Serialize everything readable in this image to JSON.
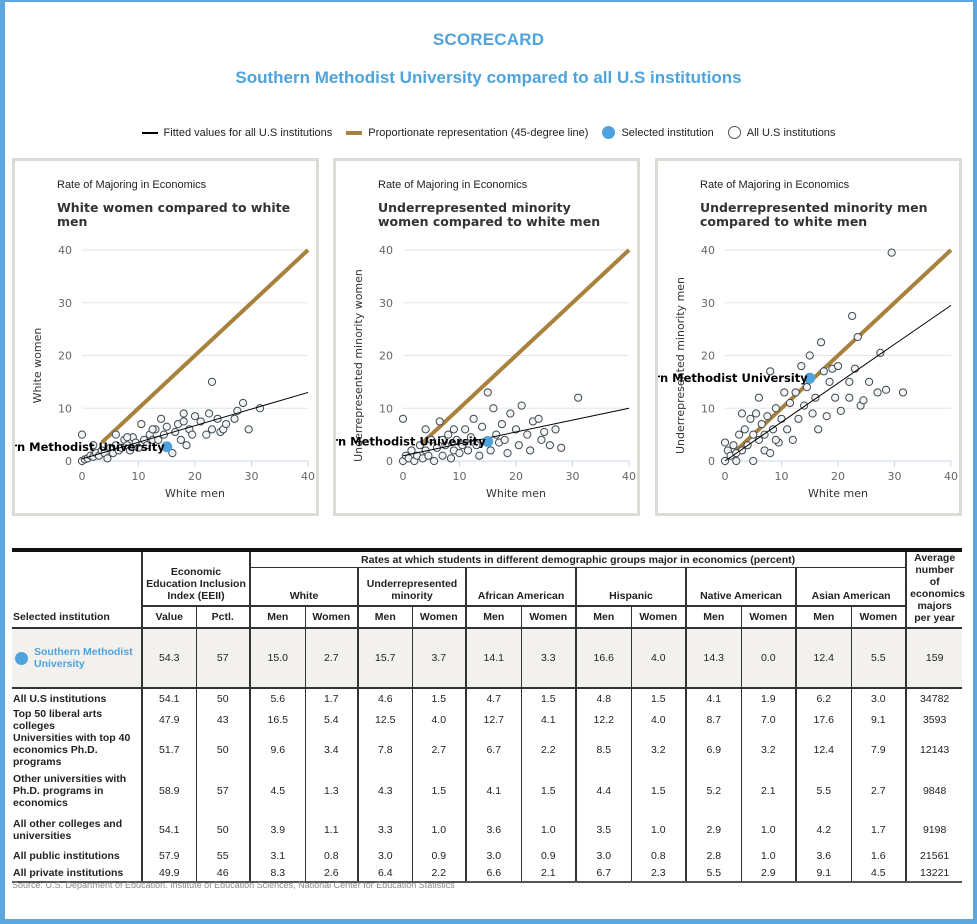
{
  "header": {
    "title": "SCORECARD",
    "subtitle": "Southern Methodist University compared to all U.S institutions"
  },
  "legend": [
    {
      "label": "Fitted values for all U.S institutions",
      "type": "line",
      "color": "#000000"
    },
    {
      "label": "Proportionate representation (45-degree line)",
      "type": "line",
      "color": "#a8813c"
    },
    {
      "label": "Selected institution",
      "type": "dot",
      "color": "#4ea3dc"
    },
    {
      "label": "All U.S institutions",
      "type": "open-circle",
      "color": "#555555"
    }
  ],
  "colors": {
    "accent": "#4ea3dc",
    "proportionate": "#a8813c",
    "fitted": "#000000",
    "frame": "#5ba7de"
  },
  "chart_data": [
    {
      "type": "scatter",
      "pretitle": "Rate of Majoring in Economics",
      "title": "White women compared to white men",
      "xlabel": "White men",
      "ylabel": "White women",
      "xlim": [
        0,
        40
      ],
      "ylim": [
        0,
        40
      ],
      "xticks": [
        0,
        10,
        20,
        30,
        40
      ],
      "yticks": [
        0,
        10,
        20,
        30,
        40
      ],
      "grid": true,
      "fitted": [
        [
          0,
          0.4
        ],
        [
          40,
          13
        ]
      ],
      "proportionate": [
        [
          3.5,
          3.5
        ],
        [
          40,
          40
        ]
      ],
      "selected": {
        "name": "Southern Methodist University",
        "x": 15.0,
        "y": 2.7
      },
      "points": [
        [
          0,
          0
        ],
        [
          0.5,
          0.3
        ],
        [
          1,
          0.5
        ],
        [
          1.5,
          1
        ],
        [
          2,
          0.8
        ],
        [
          2.5,
          1.5
        ],
        [
          3,
          1
        ],
        [
          3.5,
          2
        ],
        [
          4,
          1.5
        ],
        [
          4.5,
          0.5
        ],
        [
          5,
          2.5
        ],
        [
          5.5,
          1.5
        ],
        [
          6,
          3
        ],
        [
          6.5,
          2
        ],
        [
          7,
          2.5
        ],
        [
          7.5,
          4
        ],
        [
          8,
          3
        ],
        [
          8.5,
          2
        ],
        [
          9,
          4.5
        ],
        [
          9.5,
          3.5
        ],
        [
          10,
          2.5
        ],
        [
          10.5,
          7
        ],
        [
          11,
          4
        ],
        [
          11.5,
          3
        ],
        [
          12,
          5
        ],
        [
          12.5,
          4
        ],
        [
          13,
          6
        ],
        [
          13.5,
          4
        ],
        [
          14,
          8
        ],
        [
          14.5,
          5
        ],
        [
          15,
          6.5
        ],
        [
          16,
          1.5
        ],
        [
          16.5,
          5.5
        ],
        [
          17,
          7
        ],
        [
          17.5,
          4
        ],
        [
          18,
          9
        ],
        [
          18.5,
          3
        ],
        [
          19,
          6
        ],
        [
          19.5,
          5
        ],
        [
          20,
          8.5
        ],
        [
          21,
          7.5
        ],
        [
          22,
          5
        ],
        [
          22.5,
          9
        ],
        [
          23,
          15
        ],
        [
          23,
          6
        ],
        [
          24,
          8
        ],
        [
          24.5,
          5.5
        ],
        [
          25,
          6
        ],
        [
          25.5,
          7
        ],
        [
          27,
          8
        ],
        [
          27.5,
          9.5
        ],
        [
          28.5,
          11
        ],
        [
          29.5,
          6
        ],
        [
          31.5,
          10
        ],
        [
          0,
          5
        ],
        [
          2,
          3
        ],
        [
          6,
          5
        ],
        [
          8,
          4.5
        ],
        [
          12.5,
          6
        ],
        [
          18,
          7.5
        ]
      ]
    },
    {
      "type": "scatter",
      "pretitle": "Rate of Majoring in Economics",
      "title": "Underrepresented minority women compared to white men",
      "xlabel": "White men",
      "ylabel": "Underrepresented minority women",
      "xlim": [
        0,
        40
      ],
      "ylim": [
        0,
        40
      ],
      "xticks": [
        0,
        10,
        20,
        30,
        40
      ],
      "yticks": [
        0,
        10,
        20,
        30,
        40
      ],
      "grid": true,
      "fitted": [
        [
          0,
          1
        ],
        [
          40,
          10
        ]
      ],
      "proportionate": [
        [
          3.5,
          3.5
        ],
        [
          40,
          40
        ]
      ],
      "selected": {
        "name": "Southern Methodist University",
        "x": 15.0,
        "y": 3.7
      },
      "points": [
        [
          0,
          0
        ],
        [
          0,
          8
        ],
        [
          0.5,
          1
        ],
        [
          1,
          0.5
        ],
        [
          1.5,
          2
        ],
        [
          2,
          0
        ],
        [
          2.5,
          1
        ],
        [
          3,
          3
        ],
        [
          3.5,
          0.5
        ],
        [
          4,
          2
        ],
        [
          4.5,
          1
        ],
        [
          5,
          4
        ],
        [
          5.5,
          0
        ],
        [
          6,
          2.5
        ],
        [
          6.5,
          7.5
        ],
        [
          7,
          1
        ],
        [
          7.5,
          3
        ],
        [
          8,
          5
        ],
        [
          8.5,
          0.5
        ],
        [
          9,
          2
        ],
        [
          9.5,
          4
        ],
        [
          10,
          1.5
        ],
        [
          10.5,
          3
        ],
        [
          11,
          6
        ],
        [
          11.5,
          2
        ],
        [
          12,
          4.5
        ],
        [
          12.5,
          8
        ],
        [
          13,
          3
        ],
        [
          13.5,
          1
        ],
        [
          14,
          6.5
        ],
        [
          15,
          13
        ],
        [
          15.5,
          2
        ],
        [
          16,
          10
        ],
        [
          16.5,
          5
        ],
        [
          17,
          3.5
        ],
        [
          17.5,
          7
        ],
        [
          18,
          4
        ],
        [
          18.5,
          1.5
        ],
        [
          19,
          9
        ],
        [
          20,
          6
        ],
        [
          20.5,
          3
        ],
        [
          21,
          10.5
        ],
        [
          22,
          5
        ],
        [
          22.5,
          2
        ],
        [
          23,
          7.5
        ],
        [
          24,
          8
        ],
        [
          24.5,
          4
        ],
        [
          25,
          5.5
        ],
        [
          26,
          3
        ],
        [
          27,
          6
        ],
        [
          28,
          2.5
        ],
        [
          31,
          12
        ],
        [
          7,
          4
        ],
        [
          4,
          6
        ],
        [
          9,
          6
        ]
      ]
    },
    {
      "type": "scatter",
      "pretitle": "Rate of Majoring in Economics",
      "title": "Underrepresented minority men compared to white men",
      "xlabel": "White men",
      "ylabel": "Underrepresented minority men",
      "xlim": [
        0,
        40
      ],
      "ylim": [
        0,
        40
      ],
      "xticks": [
        0,
        10,
        20,
        30,
        40
      ],
      "yticks": [
        0,
        10,
        20,
        30,
        40
      ],
      "grid": true,
      "fitted": [
        [
          0,
          0
        ],
        [
          40,
          29.5
        ]
      ],
      "proportionate": [
        [
          0,
          0
        ],
        [
          40,
          40
        ]
      ],
      "selected": {
        "name": "Southern Methodist University",
        "x": 15.0,
        "y": 15.7
      },
      "points": [
        [
          0,
          0
        ],
        [
          0,
          3.5
        ],
        [
          0.5,
          2
        ],
        [
          1,
          1
        ],
        [
          1.5,
          3
        ],
        [
          2,
          0
        ],
        [
          2.5,
          5
        ],
        [
          3,
          2
        ],
        [
          3.5,
          6
        ],
        [
          4,
          3
        ],
        [
          4.5,
          8
        ],
        [
          5,
          0
        ],
        [
          5,
          5
        ],
        [
          5.5,
          9
        ],
        [
          6,
          4
        ],
        [
          6,
          12
        ],
        [
          6.5,
          7
        ],
        [
          7,
          2
        ],
        [
          7.5,
          8.5
        ],
        [
          8,
          1.5
        ],
        [
          8,
          17
        ],
        [
          8.5,
          6
        ],
        [
          9,
          10
        ],
        [
          9.5,
          3.5
        ],
        [
          10,
          8
        ],
        [
          10.5,
          13
        ],
        [
          11,
          6
        ],
        [
          11.5,
          11
        ],
        [
          12,
          4
        ],
        [
          12.5,
          13
        ],
        [
          13,
          8
        ],
        [
          13.5,
          18
        ],
        [
          14,
          10.5
        ],
        [
          14.5,
          14
        ],
        [
          15,
          20
        ],
        [
          15.5,
          9
        ],
        [
          16,
          12
        ],
        [
          16.5,
          6
        ],
        [
          17,
          22.5
        ],
        [
          17.5,
          17
        ],
        [
          18,
          8.5
        ],
        [
          18.5,
          15
        ],
        [
          19,
          17.5
        ],
        [
          19.5,
          12
        ],
        [
          20,
          18
        ],
        [
          20.5,
          9.5
        ],
        [
          22,
          15
        ],
        [
          22,
          12
        ],
        [
          22.5,
          27.5
        ],
        [
          23,
          17.5
        ],
        [
          23.5,
          23.5
        ],
        [
          24,
          10.5
        ],
        [
          24.5,
          11.5
        ],
        [
          25.5,
          15
        ],
        [
          27,
          13
        ],
        [
          27.5,
          20.5
        ],
        [
          28.5,
          13.5
        ],
        [
          29.5,
          39.5
        ],
        [
          31.5,
          13
        ],
        [
          3,
          9
        ],
        [
          7,
          5
        ],
        [
          9,
          4
        ],
        [
          2,
          1.5
        ]
      ]
    }
  ],
  "table": {
    "group_header": "Rates at which students in different demographic groups major in economics (percent)",
    "col_institution": "Selected institution",
    "col_eeii": "Economic Education Inclusion Index (EEII)",
    "eeii_sub": [
      "Value",
      "Pctl."
    ],
    "groups": [
      "White",
      "Underrepresented minority",
      "African American",
      "Hispanic",
      "Native American",
      "Asian American"
    ],
    "sub": [
      "Men",
      "Women"
    ],
    "col_avg": "Average number of economics majors per year",
    "selected_row": {
      "name": "Southern Methodist University",
      "values": [
        "54.3",
        "57",
        "15.0",
        "2.7",
        "15.7",
        "3.7",
        "14.1",
        "3.3",
        "16.6",
        "4.0",
        "14.3",
        "0.0",
        "12.4",
        "5.5",
        "159"
      ]
    },
    "rows": [
      {
        "name": "All U.S institutions",
        "values": [
          "54.1",
          "50",
          "5.6",
          "1.7",
          "4.6",
          "1.5",
          "4.7",
          "1.5",
          "4.8",
          "1.5",
          "4.1",
          "1.9",
          "6.2",
          "3.0",
          "34782"
        ]
      },
      {
        "name": "Top 50 liberal arts colleges",
        "values": [
          "47.9",
          "43",
          "16.5",
          "5.4",
          "12.5",
          "4.0",
          "12.7",
          "4.1",
          "12.2",
          "4.0",
          "8.7",
          "7.0",
          "17.6",
          "9.1",
          "3593"
        ]
      },
      {
        "name": "Universities with top 40 economics Ph.D. programs",
        "values": [
          "51.7",
          "50",
          "9.6",
          "3.4",
          "7.8",
          "2.7",
          "6.7",
          "2.2",
          "8.5",
          "3.2",
          "6.9",
          "3.2",
          "12.4",
          "7.9",
          "12143"
        ]
      },
      {
        "name": "Other universities with Ph.D. programs in economics",
        "values": [
          "58.9",
          "57",
          "4.5",
          "1.3",
          "4.3",
          "1.5",
          "4.1",
          "1.5",
          "4.4",
          "1.5",
          "5.2",
          "2.1",
          "5.5",
          "2.7",
          "9848"
        ]
      },
      {
        "name": "All other colleges and universities",
        "values": [
          "54.1",
          "50",
          "3.9",
          "1.1",
          "3.3",
          "1.0",
          "3.6",
          "1.0",
          "3.5",
          "1.0",
          "2.9",
          "1.0",
          "4.2",
          "1.7",
          "9198"
        ]
      },
      {
        "name": "All public institutions",
        "values": [
          "57.9",
          "55",
          "3.1",
          "0.8",
          "3.0",
          "0.9",
          "3.0",
          "0.9",
          "3.0",
          "0.8",
          "2.8",
          "1.0",
          "3.6",
          "1.6",
          "21561"
        ]
      },
      {
        "name": "All private institutions",
        "values": [
          "49.9",
          "46",
          "8.3",
          "2.6",
          "6.4",
          "2.2",
          "6.6",
          "2.1",
          "6.7",
          "2.3",
          "5.5",
          "2.9",
          "9.1",
          "4.5",
          "13221"
        ]
      }
    ]
  },
  "source": "Source: U.S. Department of Education. Institute of Education Sciences, National Center for Education Statistics"
}
